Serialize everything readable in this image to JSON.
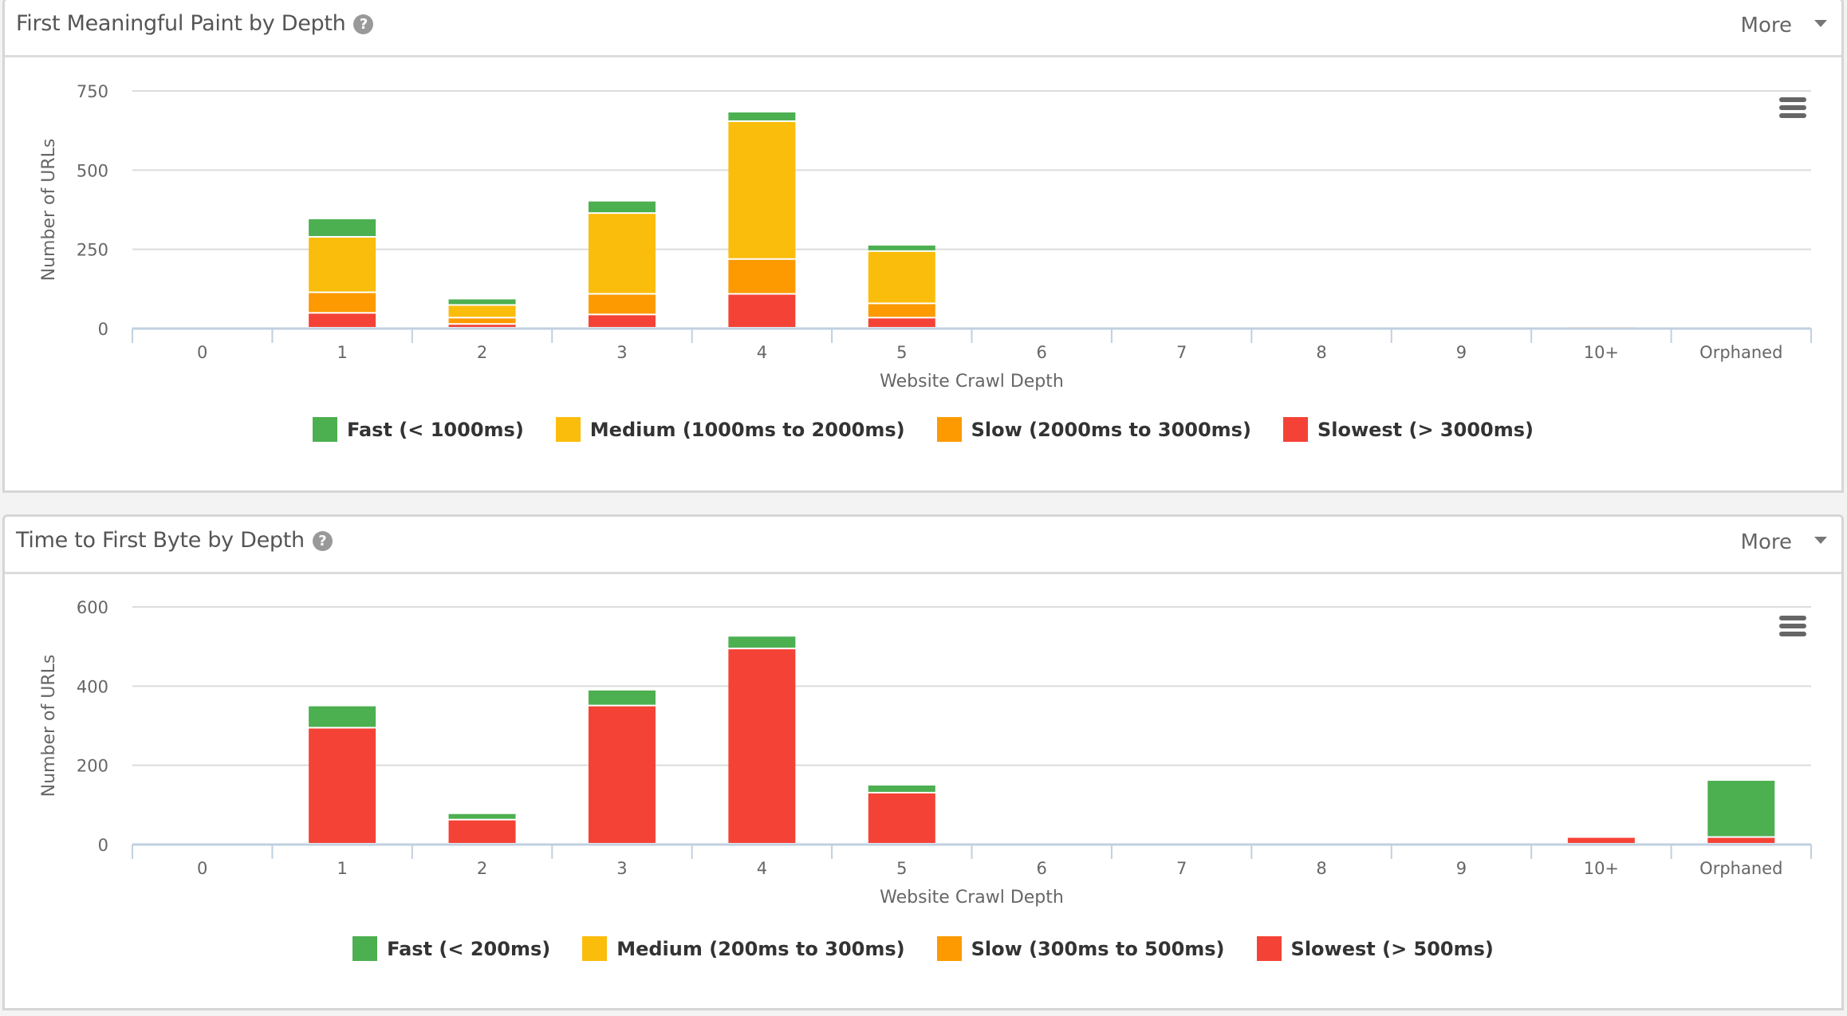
{
  "colors": {
    "fast": "#4caf50",
    "medium": "#fbbd0c",
    "slow": "#fd9a01",
    "slowest": "#f44336",
    "grid": "#dcdcdc",
    "axis": "#c0d0e0"
  },
  "panels": [
    {
      "title": "First Meaningful Paint by Depth",
      "help_icon": "question-circle-icon",
      "more_label": "More",
      "menu_icon": "hamburger-menu-icon"
    },
    {
      "title": "Time to First Byte by Depth",
      "help_icon": "question-circle-icon",
      "more_label": "More",
      "menu_icon": "hamburger-menu-icon"
    }
  ],
  "chart_data": [
    {
      "type": "bar",
      "stacked": true,
      "title": "First Meaningful Paint by Depth",
      "xlabel": "Website Crawl Depth",
      "ylabel": "Number of URLs",
      "ylim": [
        0,
        750
      ],
      "yticks": [
        0,
        250,
        500,
        750
      ],
      "grid": true,
      "legend_position": "bottom",
      "categories": [
        "0",
        "1",
        "2",
        "3",
        "4",
        "5",
        "6",
        "7",
        "8",
        "9",
        "10+",
        "Orphaned"
      ],
      "series": [
        {
          "key": "slowest",
          "name": "Slowest (> 3000ms)",
          "values": [
            0,
            47,
            12,
            42,
            107,
            32,
            0,
            0,
            0,
            0,
            0,
            0
          ]
        },
        {
          "key": "slow",
          "name": "Slow (2000ms to 3000ms)",
          "values": [
            0,
            65,
            20,
            65,
            110,
            45,
            0,
            0,
            0,
            0,
            4,
            0
          ]
        },
        {
          "key": "medium",
          "name": "Medium (1000ms to 2000ms)",
          "values": [
            0,
            175,
            40,
            255,
            435,
            165,
            0,
            0,
            0,
            0,
            0,
            3
          ]
        },
        {
          "key": "fast",
          "name": "Fast (< 1000ms)",
          "values": [
            0,
            58,
            20,
            39,
            30,
            20,
            0,
            0,
            0,
            0,
            0,
            0
          ]
        }
      ],
      "legend_order": [
        "fast",
        "medium",
        "slow",
        "slowest"
      ]
    },
    {
      "type": "bar",
      "stacked": true,
      "title": "Time to First Byte by Depth",
      "xlabel": "Website Crawl Depth",
      "ylabel": "Number of URLs",
      "ylim": [
        0,
        600
      ],
      "yticks": [
        0,
        200,
        400,
        600
      ],
      "grid": true,
      "legend_position": "bottom",
      "categories": [
        "0",
        "1",
        "2",
        "3",
        "4",
        "5",
        "6",
        "7",
        "8",
        "9",
        "10+",
        "Orphaned"
      ],
      "series": [
        {
          "key": "slowest",
          "name": "Slowest (> 500ms)",
          "values": [
            0,
            293,
            61,
            349,
            493,
            129,
            0,
            0,
            0,
            0,
            17,
            17
          ]
        },
        {
          "key": "slow",
          "name": "Slow (300ms to 500ms)",
          "values": [
            0,
            0,
            0,
            0,
            0,
            0,
            0,
            0,
            0,
            0,
            0,
            0
          ]
        },
        {
          "key": "medium",
          "name": "Medium (200ms to 300ms)",
          "values": [
            0,
            0,
            0,
            0,
            0,
            0,
            0,
            0,
            0,
            0,
            0,
            0
          ]
        },
        {
          "key": "fast",
          "name": "Fast (< 200ms)",
          "values": [
            0,
            56,
            16,
            40,
            32,
            20,
            0,
            0,
            0,
            0,
            0,
            144
          ]
        }
      ],
      "legend_order": [
        "fast",
        "medium",
        "slow",
        "slowest"
      ]
    }
  ]
}
